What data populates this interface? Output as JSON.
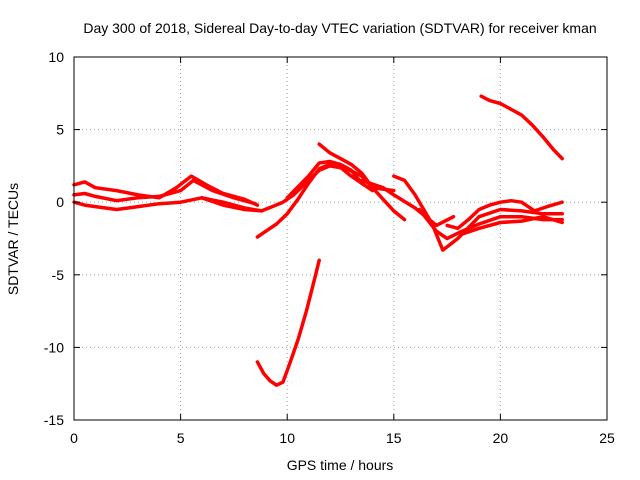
{
  "chart_data": {
    "type": "line",
    "title": "Day 300 of 2018, Sidereal Day-to-day VTEC variation (SDTVAR) for receiver kman",
    "xlabel": "GPS time / hours",
    "ylabel": "SDTVAR / TECUs",
    "xlim": [
      0,
      25
    ],
    "ylim": [
      -15,
      10
    ],
    "xticks": [
      0,
      5,
      10,
      15,
      20,
      25
    ],
    "yticks": [
      -15,
      -10,
      -5,
      0,
      5,
      10
    ],
    "xtick_labels": [
      "0",
      "5",
      "10",
      "15",
      "20",
      "25"
    ],
    "ytick_labels": [
      "-15",
      "-10",
      "-5",
      "0",
      "5",
      "10"
    ],
    "grid": true,
    "legend": "none",
    "color": "#ff0000",
    "series": [
      {
        "name": "track-1",
        "x": [
          0.0,
          0.5,
          1.0,
          2.0,
          3.0,
          4.0,
          4.8,
          5.5,
          6.2,
          7.0,
          8.0,
          8.6
        ],
        "y": [
          1.2,
          1.4,
          1.0,
          0.8,
          0.5,
          0.3,
          1.0,
          1.8,
          1.2,
          0.6,
          0.2,
          -0.2
        ]
      },
      {
        "name": "track-2",
        "x": [
          0.0,
          0.5,
          1.0,
          2.0,
          3.0,
          4.0,
          5.0,
          5.6,
          6.5,
          7.5,
          8.5
        ],
        "y": [
          0.5,
          0.6,
          0.4,
          0.1,
          0.3,
          0.4,
          0.8,
          1.5,
          0.8,
          0.3,
          -0.1
        ]
      },
      {
        "name": "track-3",
        "x": [
          0.0,
          0.5,
          1.0,
          2.0,
          3.0,
          4.0,
          5.0,
          6.0,
          7.0,
          8.0,
          8.8
        ],
        "y": [
          0.0,
          -0.2,
          -0.3,
          -0.5,
          -0.3,
          -0.1,
          0.0,
          0.3,
          -0.2,
          -0.5,
          -0.6
        ]
      },
      {
        "name": "track-4",
        "x": [
          6.0,
          7.0,
          8.0,
          8.8,
          9.3,
          9.8,
          10.3,
          11.0,
          11.5,
          12.0,
          12.8,
          13.5,
          14.0,
          15.0
        ],
        "y": [
          0.3,
          0.0,
          -0.4,
          -0.6,
          -0.3,
          0.0,
          0.5,
          1.5,
          2.2,
          2.5,
          2.3,
          1.8,
          1.0,
          0.8
        ]
      },
      {
        "name": "track-5",
        "x": [
          8.6,
          9.0,
          9.5,
          10.0,
          10.5,
          11.0,
          11.5,
          12.0,
          12.5,
          13.0,
          13.6
        ],
        "y": [
          -2.4,
          -2.0,
          -1.5,
          -0.8,
          0.2,
          1.3,
          2.3,
          2.6,
          2.4,
          1.8,
          1.2
        ]
      },
      {
        "name": "track-6",
        "x": [
          11.5,
          12.0,
          12.5,
          13.0,
          13.5,
          14.0,
          14.5,
          15.0,
          15.5
        ],
        "y": [
          4.0,
          3.4,
          3.0,
          2.6,
          2.0,
          1.0,
          0.2,
          -0.6,
          -1.2
        ]
      },
      {
        "name": "track-7",
        "x": [
          10.0,
          11.0,
          11.5,
          12.0,
          12.5,
          13.0,
          13.5,
          14.0
        ],
        "y": [
          0.3,
          1.8,
          2.7,
          2.8,
          2.6,
          2.2,
          1.3,
          0.8
        ]
      },
      {
        "name": "track-8",
        "x": [
          13.5,
          14.5,
          15.0,
          16.0,
          17.0,
          17.8
        ],
        "y": [
          1.5,
          1.0,
          0.5,
          -0.4,
          -1.6,
          -1.0
        ]
      },
      {
        "name": "track-9",
        "x": [
          15.0,
          15.5,
          16.0,
          16.8,
          17.3,
          18.0,
          19.0,
          20.0,
          21.0,
          22.0,
          22.9
        ],
        "y": [
          1.8,
          1.5,
          0.5,
          -1.5,
          -3.3,
          -2.5,
          -1.0,
          -0.5,
          -0.6,
          -0.8,
          -0.8
        ]
      },
      {
        "name": "track-10",
        "x": [
          16.2,
          17.0,
          17.5,
          18.2,
          19.0,
          20.0,
          21.0,
          22.0,
          22.9
        ],
        "y": [
          -0.5,
          -2.0,
          -2.5,
          -2.0,
          -1.5,
          -1.0,
          -1.0,
          -1.2,
          -1.2
        ]
      },
      {
        "name": "track-11",
        "x": [
          17.5,
          18.0,
          18.5,
          19.0,
          19.5,
          20.0,
          20.5,
          21.0,
          21.6,
          22.2,
          22.9
        ],
        "y": [
          -1.6,
          -1.8,
          -1.2,
          -0.5,
          -0.2,
          0.0,
          0.1,
          0.0,
          -0.6,
          -0.3,
          0.0
        ]
      },
      {
        "name": "track-12",
        "x": [
          18.2,
          19.0,
          20.0,
          21.0,
          22.0,
          22.9
        ],
        "y": [
          -2.2,
          -1.8,
          -1.4,
          -1.3,
          -1.0,
          -1.4
        ]
      },
      {
        "name": "track-13",
        "x": [
          19.1,
          19.5,
          20.0,
          21.0,
          21.5,
          22.0,
          22.5,
          22.9
        ],
        "y": [
          7.3,
          7.0,
          6.8,
          6.0,
          5.3,
          4.5,
          3.6,
          3.0
        ]
      },
      {
        "name": "track-14",
        "x": [
          8.6,
          8.9,
          9.2,
          9.5,
          9.8,
          10.1,
          10.5,
          10.9,
          11.3,
          11.5
        ],
        "y": [
          -11.0,
          -11.8,
          -12.3,
          -12.6,
          -12.4,
          -11.2,
          -9.5,
          -7.5,
          -5.2,
          -4.0
        ]
      }
    ]
  }
}
